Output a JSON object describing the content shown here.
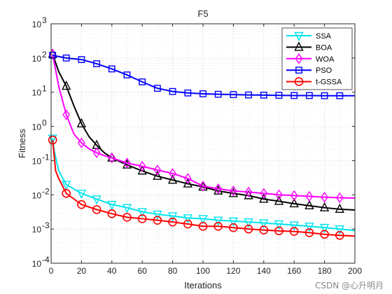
{
  "chart_data": {
    "type": "line",
    "title": "F5",
    "xlabel": "Iterations",
    "ylabel": "Fitness",
    "xlim": [
      0,
      200
    ],
    "ylim": [
      0.0001,
      1000
    ],
    "yscale": "log",
    "grid": true,
    "legend_position": "top-right",
    "x_ticks": [
      "0",
      "20",
      "40",
      "60",
      "80",
      "100",
      "120",
      "140",
      "160",
      "180",
      "200"
    ],
    "y_ticks": [
      {
        "base": "10",
        "exp": "-4"
      },
      {
        "base": "10",
        "exp": "-3"
      },
      {
        "base": "10",
        "exp": "-2"
      },
      {
        "base": "10",
        "exp": "-1"
      },
      {
        "base": "10",
        "exp": "0"
      },
      {
        "base": "10",
        "exp": "1"
      },
      {
        "base": "10",
        "exp": "2"
      },
      {
        "base": "10",
        "exp": "3"
      }
    ],
    "series": [
      {
        "name": "SSA",
        "color": "#00e5ee",
        "marker": "triangle-down",
        "x": [
          1,
          2,
          5,
          10,
          20,
          30,
          40,
          50,
          60,
          70,
          80,
          90,
          100,
          110,
          120,
          130,
          140,
          150,
          160,
          170,
          180,
          190,
          200
        ],
        "y": [
          0.45,
          0.2,
          0.05,
          0.02,
          0.011,
          0.0075,
          0.0052,
          0.0042,
          0.0032,
          0.0027,
          0.0024,
          0.0021,
          0.002,
          0.0018,
          0.0017,
          0.0016,
          0.0015,
          0.0014,
          0.0013,
          0.0012,
          0.0011,
          0.001,
          0.0009
        ]
      },
      {
        "name": "BOA",
        "color": "#000000",
        "marker": "triangle-up",
        "x": [
          1,
          5,
          10,
          15,
          20,
          25,
          30,
          35,
          40,
          50,
          60,
          70,
          80,
          90,
          100,
          110,
          120,
          130,
          140,
          150,
          160,
          170,
          180,
          190,
          200
        ],
        "y": [
          130,
          40,
          15,
          4,
          1.2,
          0.5,
          0.28,
          0.17,
          0.12,
          0.075,
          0.05,
          0.035,
          0.027,
          0.021,
          0.017,
          0.013,
          0.011,
          0.0095,
          0.0075,
          0.0065,
          0.0055,
          0.0048,
          0.0042,
          0.0038,
          0.0036
        ]
      },
      {
        "name": "WOA",
        "color": "#ff00ff",
        "marker": "diamond",
        "x": [
          1,
          5,
          10,
          15,
          20,
          25,
          30,
          35,
          40,
          50,
          60,
          70,
          80,
          90,
          100,
          110,
          120,
          130,
          140,
          150,
          160,
          170,
          180,
          190,
          200
        ],
        "y": [
          130,
          15,
          2.2,
          0.6,
          0.33,
          0.22,
          0.17,
          0.14,
          0.12,
          0.085,
          0.068,
          0.053,
          0.042,
          0.03,
          0.018,
          0.015,
          0.013,
          0.012,
          0.011,
          0.01,
          0.0095,
          0.009,
          0.0085,
          0.0082,
          0.008
        ]
      },
      {
        "name": "PSO",
        "color": "#0000ff",
        "marker": "square",
        "x": [
          1,
          10,
          20,
          30,
          40,
          50,
          60,
          70,
          80,
          90,
          100,
          110,
          120,
          130,
          140,
          150,
          160,
          170,
          180,
          190,
          200
        ],
        "y": [
          120,
          100,
          90,
          68,
          48,
          32,
          20,
          13,
          10.5,
          9.5,
          9,
          8.7,
          8.5,
          8.3,
          8.2,
          8.1,
          8,
          8,
          7.9,
          7.9,
          7.9
        ]
      },
      {
        "name": "t-GSSA",
        "color": "#ff0000",
        "marker": "circle",
        "x": [
          1,
          3,
          5,
          10,
          20,
          30,
          40,
          50,
          60,
          70,
          80,
          90,
          100,
          110,
          120,
          130,
          140,
          150,
          160,
          170,
          180,
          190,
          200
        ],
        "y": [
          0.4,
          0.05,
          0.03,
          0.011,
          0.0052,
          0.0037,
          0.0028,
          0.0022,
          0.002,
          0.0018,
          0.0016,
          0.0014,
          0.0012,
          0.0012,
          0.0011,
          0.001,
          0.00093,
          0.00088,
          0.00085,
          0.00078,
          0.0007,
          0.00065,
          0.00062
        ]
      }
    ]
  },
  "watermark": "CSDN @心升明月"
}
